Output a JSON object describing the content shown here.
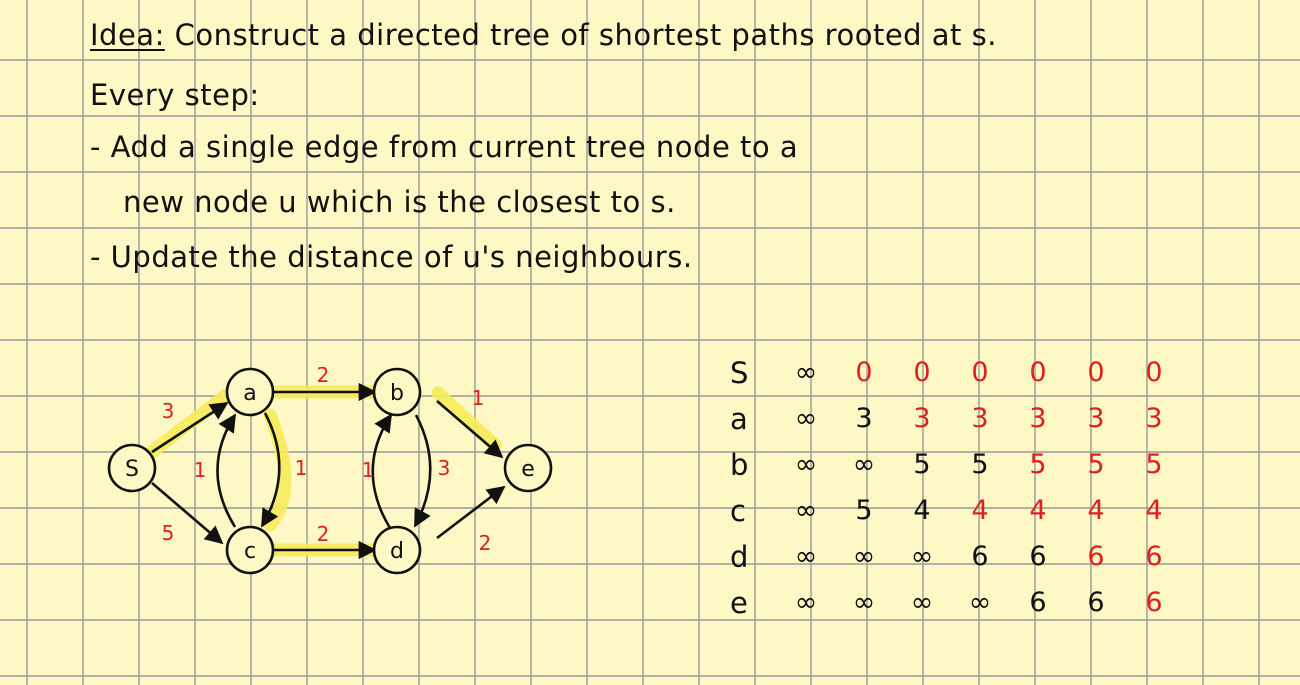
{
  "notes": {
    "idea_label": "Idea:",
    "idea_text": " Construct a directed tree of shortest paths rooted at s.",
    "every_step": "Every step:",
    "bullet1_line1": "- Add a single edge from current tree node to a",
    "bullet1_line2": "new node u which is the closest to s.",
    "bullet2": "- Update the distance of u's neighbours."
  },
  "graph": {
    "nodes": [
      {
        "id": "s",
        "label": "S"
      },
      {
        "id": "a",
        "label": "a"
      },
      {
        "id": "b",
        "label": "b"
      },
      {
        "id": "c",
        "label": "c"
      },
      {
        "id": "d",
        "label": "d"
      },
      {
        "id": "e",
        "label": "e"
      }
    ],
    "edges": [
      {
        "from": "s",
        "to": "a",
        "weight": "3",
        "in_tree": true
      },
      {
        "from": "s",
        "to": "c",
        "weight": "5",
        "in_tree": false
      },
      {
        "from": "a",
        "to": "b",
        "weight": "2",
        "in_tree": true
      },
      {
        "from": "a",
        "to": "c",
        "weight": "1",
        "in_tree": true
      },
      {
        "from": "c",
        "to": "a",
        "weight": "1",
        "in_tree": false
      },
      {
        "from": "c",
        "to": "d",
        "weight": "2",
        "in_tree": true
      },
      {
        "from": "b",
        "to": "e",
        "weight": "1",
        "in_tree": true
      },
      {
        "from": "b",
        "to": "d",
        "weight": "3",
        "in_tree": false
      },
      {
        "from": "d",
        "to": "b",
        "weight": "1",
        "in_tree": false
      },
      {
        "from": "d",
        "to": "e",
        "weight": "2",
        "in_tree": false
      }
    ],
    "colors": {
      "ink": "#111111",
      "weight": "#e02020",
      "highlight": "#f7ec5a",
      "paper": "#fdf8c4",
      "grid": "#9a9a9a"
    }
  },
  "distance_table": {
    "rows": [
      {
        "node": "S",
        "values": [
          "∞",
          "0",
          "0",
          "0",
          "0",
          "0",
          "0"
        ],
        "final_from": 1
      },
      {
        "node": "a",
        "values": [
          "∞",
          "3",
          "3",
          "3",
          "3",
          "3",
          "3"
        ],
        "final_from": 2
      },
      {
        "node": "b",
        "values": [
          "∞",
          "∞",
          "5",
          "5",
          "5",
          "5",
          "5"
        ],
        "final_from": 4
      },
      {
        "node": "c",
        "values": [
          "∞",
          "5",
          "4",
          "4",
          "4",
          "4",
          "4"
        ],
        "final_from": 3
      },
      {
        "node": "d",
        "values": [
          "∞",
          "∞",
          "∞",
          "6",
          "6",
          "6",
          "6"
        ],
        "final_from": 5
      },
      {
        "node": "e",
        "values": [
          "∞",
          "∞",
          "∞",
          "∞",
          "6",
          "6",
          "6"
        ],
        "final_from": 6
      }
    ]
  }
}
